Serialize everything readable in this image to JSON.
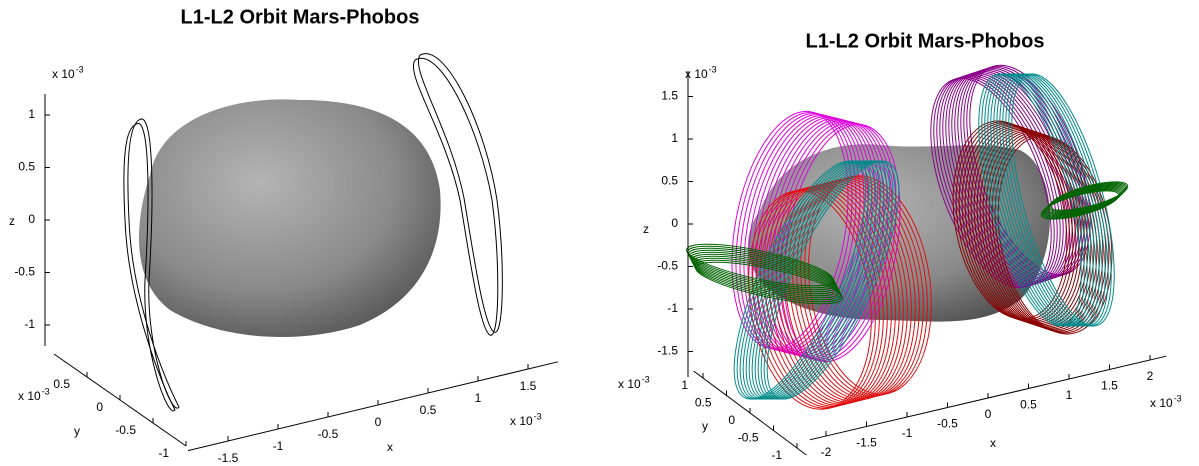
{
  "chart_data": [
    {
      "type": "3d-orbit",
      "title": "L1-L2 Orbit Mars-Phobos",
      "xlabel": "x",
      "ylabel": "y",
      "zlabel": "z",
      "x_exponent": {
        "base": "x 10",
        "power": "-3"
      },
      "y_exponent": {
        "base": "x 10",
        "power": "-3"
      },
      "z_exponent": {
        "base": "x 10",
        "power": "-3"
      },
      "xlim": [
        -1.9,
        1.8
      ],
      "xticks": [
        -1.5,
        -1,
        -0.5,
        0,
        0.5,
        1,
        1.5
      ],
      "ylim": [
        -1,
        1
      ],
      "yticks": [
        -1,
        -0.5,
        0,
        0.5
      ],
      "zlim": [
        -1.2,
        1.2
      ],
      "zticks": [
        -1,
        -0.5,
        0,
        0.5,
        1
      ]
    },
    {
      "type": "3d-orbit",
      "title": "L1-L2 Orbit Mars-Phobos",
      "xlabel": "x",
      "ylabel": "y",
      "zlabel": "z",
      "x_exponent": {
        "base": "x 10",
        "power": "-3"
      },
      "y_exponent": {
        "base": "x 10",
        "power": "-3"
      },
      "z_exponent": {
        "base": "x 10",
        "power": "-3"
      },
      "xlim": [
        -2.2,
        2.2
      ],
      "xticks": [
        -2,
        -1.5,
        -1,
        -0.5,
        0,
        0.5,
        1,
        1.5,
        2
      ],
      "ylim": [
        -1.2,
        1.2
      ],
      "yticks": [
        -1,
        -0.5,
        0,
        0.5,
        1
      ],
      "zlim": [
        -1.8,
        1.8
      ],
      "zticks": [
        -1.5,
        -1,
        -0.5,
        0,
        0.5,
        1,
        1.5
      ]
    }
  ]
}
